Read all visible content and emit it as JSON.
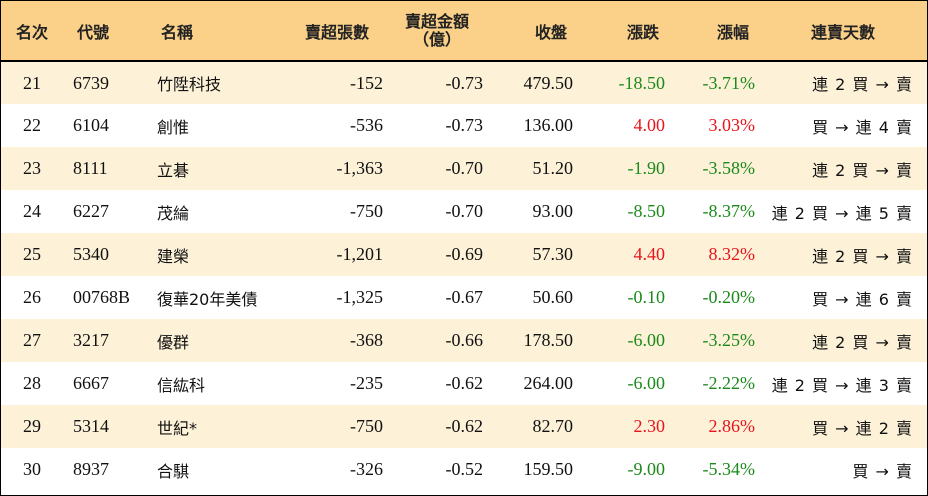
{
  "headers": {
    "rank": "名次",
    "code": "代號",
    "name": "名稱",
    "net_sell_shares": "賣超張數",
    "net_sell_amount_line1": "賣超金額",
    "net_sell_amount_line2": "（億）",
    "close": "收盤",
    "change": "漲跌",
    "change_pct": "漲幅",
    "streak": "連賣天數"
  },
  "colors": {
    "header_bg": "#fbd18a",
    "stripe_bg": "#fdf1d8",
    "up": "#e8141b",
    "down": "#1b8a1b"
  },
  "rows": [
    {
      "rank": "21",
      "code": "6739",
      "name": "竹陞科技",
      "shares": "-152",
      "amount": "-0.73",
      "close": "479.50",
      "change": "-18.50",
      "pct": "-3.71%",
      "dir": "down",
      "streak": "連 2 買 → 賣"
    },
    {
      "rank": "22",
      "code": "6104",
      "name": "創惟",
      "shares": "-536",
      "amount": "-0.73",
      "close": "136.00",
      "change": "4.00",
      "pct": "3.03%",
      "dir": "up",
      "streak": "買 → 連 4 賣"
    },
    {
      "rank": "23",
      "code": "8111",
      "name": "立碁",
      "shares": "-1,363",
      "amount": "-0.70",
      "close": "51.20",
      "change": "-1.90",
      "pct": "-3.58%",
      "dir": "down",
      "streak": "連 2 買 → 賣"
    },
    {
      "rank": "24",
      "code": "6227",
      "name": "茂綸",
      "shares": "-750",
      "amount": "-0.70",
      "close": "93.00",
      "change": "-8.50",
      "pct": "-8.37%",
      "dir": "down",
      "streak": "連 2 買 → 連 5 賣"
    },
    {
      "rank": "25",
      "code": "5340",
      "name": "建榮",
      "shares": "-1,201",
      "amount": "-0.69",
      "close": "57.30",
      "change": "4.40",
      "pct": "8.32%",
      "dir": "up",
      "streak": "連 2 買 → 賣"
    },
    {
      "rank": "26",
      "code": "00768B",
      "name": "復華20年美債",
      "shares": "-1,325",
      "amount": "-0.67",
      "close": "50.60",
      "change": "-0.10",
      "pct": "-0.20%",
      "dir": "down",
      "streak": "買 → 連 6 賣"
    },
    {
      "rank": "27",
      "code": "3217",
      "name": "優群",
      "shares": "-368",
      "amount": "-0.66",
      "close": "178.50",
      "change": "-6.00",
      "pct": "-3.25%",
      "dir": "down",
      "streak": "連 2 買 → 賣"
    },
    {
      "rank": "28",
      "code": "6667",
      "name": "信紘科",
      "shares": "-235",
      "amount": "-0.62",
      "close": "264.00",
      "change": "-6.00",
      "pct": "-2.22%",
      "dir": "down",
      "streak": "連 2 買 → 連 3 賣"
    },
    {
      "rank": "29",
      "code": "5314",
      "name": "世紀*",
      "shares": "-750",
      "amount": "-0.62",
      "close": "82.70",
      "change": "2.30",
      "pct": "2.86%",
      "dir": "up",
      "streak": "買 → 連 2 賣"
    },
    {
      "rank": "30",
      "code": "8937",
      "name": "合騏",
      "shares": "-326",
      "amount": "-0.52",
      "close": "159.50",
      "change": "-9.00",
      "pct": "-5.34%",
      "dir": "down",
      "streak": "買 → 賣"
    }
  ]
}
